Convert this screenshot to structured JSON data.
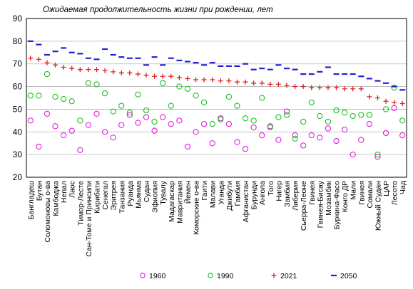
{
  "chart_data": {
    "type": "scatter",
    "title": "Ожидаемая продолжительность жизни при рождении, лет",
    "xlabel": "",
    "ylabel": "",
    "ylim": [
      20,
      90
    ],
    "yticks": [
      20,
      30,
      40,
      50,
      60,
      70,
      80,
      90
    ],
    "grid": "horizontal",
    "legend_position": "bottom",
    "categories": [
      "Бангладеш",
      "Бутан",
      "Соломоновы о-ва",
      "Камбоджа",
      "Непал",
      "Лаос",
      "Тимор-Лесте",
      "Сан-Томе и Принсипи",
      "Кирибати",
      "Сенегал",
      "Эритрея",
      "Танзания",
      "Руанда",
      "Мьянма",
      "Судан",
      "Эфиопия",
      "Тувалу",
      "Мадагаскар",
      "Мавритания",
      "Йемен",
      "Коморские о-ва",
      "Гаити",
      "Малави",
      "Уганда",
      "Джибути",
      "Гамбия",
      "Афганистан",
      "Бурунди",
      "Ангола",
      "Того",
      "Нигер",
      "Замбия",
      "Либерия",
      "Сьерра-Леоне",
      "Гвинея",
      "Гвинея-Бисау",
      "Мозамбик",
      "Буркина-Фасо",
      "Конго ДР",
      "Мали",
      "Гвинея",
      "Сомали",
      "Южный Судан",
      "ЦАР",
      "Лесото",
      "Чад"
    ],
    "series": [
      {
        "name": "1960",
        "marker": "circle",
        "color": "#e020e0",
        "values": [
          45,
          33.5,
          48,
          42.5,
          38.5,
          40.5,
          32,
          43,
          48,
          40,
          37.5,
          43,
          47.5,
          44,
          46.5,
          40.5,
          46.5,
          43.5,
          45,
          33.5,
          40,
          43.5,
          35,
          46,
          43.5,
          35.5,
          32.5,
          42,
          38.5,
          42.5,
          36.5,
          49,
          38.5,
          34,
          38.5,
          37.5,
          41.5,
          36,
          41,
          30,
          36.5,
          43.5,
          29,
          39.5,
          50.5,
          38.5
        ]
      },
      {
        "name": "1990",
        "marker": "circle",
        "color": "#20c020",
        "values": [
          56,
          56,
          65.5,
          55.5,
          54.5,
          53.5,
          45,
          61.5,
          61,
          57,
          49,
          51.5,
          48.5,
          56.5,
          49.5,
          44.5,
          61.5,
          51.5,
          60,
          59,
          56,
          53,
          43.5,
          45.5,
          55.5,
          51.5,
          46,
          45,
          55,
          42,
          46.5,
          47.5,
          37,
          44.5,
          53,
          47,
          44.5,
          49.5,
          48.5,
          47,
          47.5,
          47.5,
          30,
          50,
          59.5,
          45
        ]
      },
      {
        "name": "2021",
        "marker": "plus",
        "color": "#e02020",
        "values": [
          72.5,
          72,
          70.5,
          69.5,
          68.5,
          68,
          67.5,
          67.5,
          67.5,
          67,
          66.5,
          66,
          66,
          65.5,
          65,
          64.5,
          64.5,
          64.5,
          64,
          63.5,
          63,
          63,
          63,
          62.5,
          62.5,
          62,
          62,
          61.5,
          61.5,
          61,
          61,
          60.5,
          60,
          60,
          59.5,
          59.5,
          59.5,
          59.5,
          59,
          59,
          59,
          55.5,
          55,
          53.5,
          53,
          52.5
        ]
      },
      {
        "name": "2050",
        "marker": "dash",
        "color": "#2020d0",
        "values": [
          80,
          78.5,
          74,
          75.5,
          77,
          75,
          74.5,
          72.5,
          72,
          76.5,
          74,
          73,
          72.5,
          72.5,
          69.5,
          73,
          69.5,
          72.5,
          71.5,
          71,
          70.5,
          69.5,
          70.5,
          69,
          69,
          69,
          70,
          67.5,
          68,
          67.5,
          69.5,
          68,
          67.5,
          65.5,
          65.5,
          66.5,
          68.5,
          65.5,
          65.5,
          65.5,
          64.5,
          63.5,
          62.5,
          61.5,
          60,
          58.5
        ]
      }
    ]
  }
}
